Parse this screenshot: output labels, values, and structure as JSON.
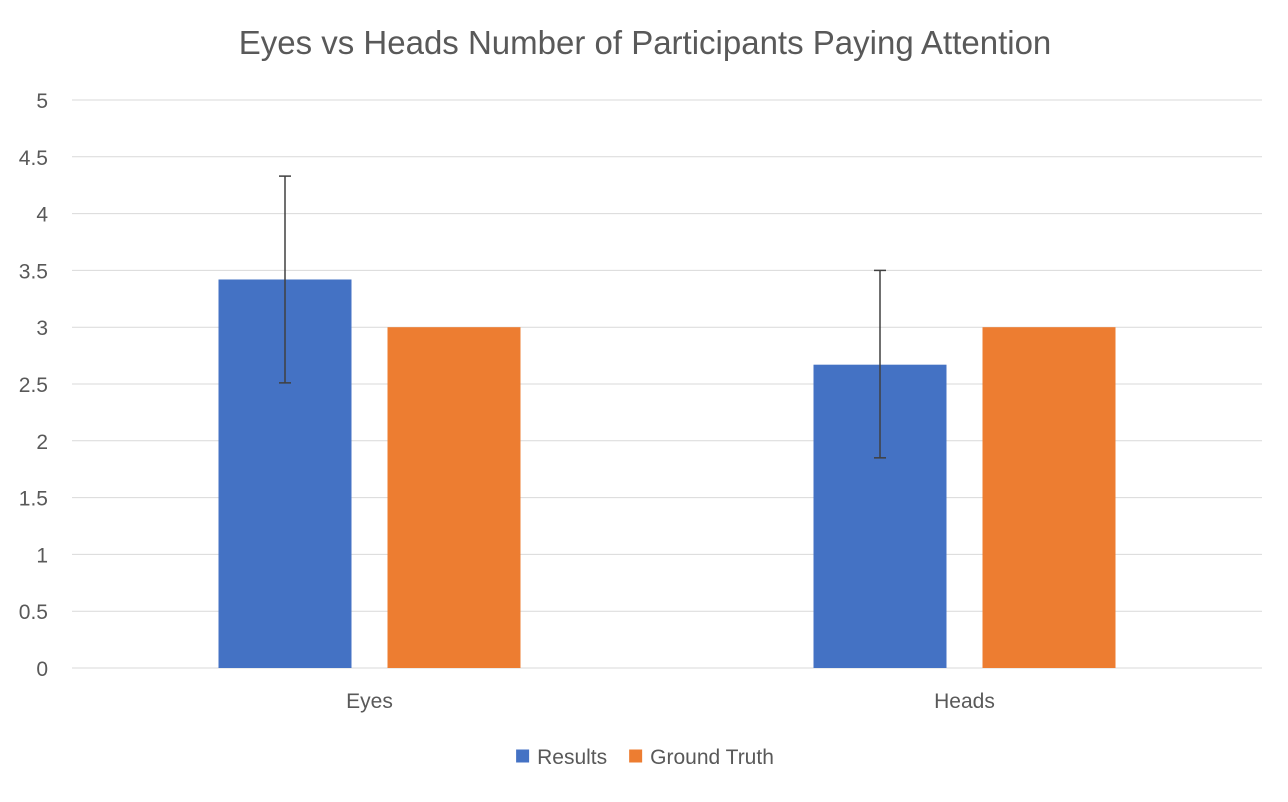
{
  "chart_data": {
    "type": "bar",
    "title": "Eyes vs Heads Number of Participants Paying Attention",
    "xlabel": "",
    "ylabel": "",
    "categories": [
      "Eyes",
      "Heads"
    ],
    "ylim": [
      0,
      5
    ],
    "yticks": [
      0,
      0.5,
      1,
      1.5,
      2,
      2.5,
      3,
      3.5,
      4,
      4.5,
      5
    ],
    "ytick_labels": [
      "0",
      "0.5",
      "1",
      "1.5",
      "2",
      "2.5",
      "3",
      "3.5",
      "4",
      "4.5",
      "5"
    ],
    "grid": true,
    "legend_position": "bottom",
    "series": [
      {
        "name": "Results",
        "color": "#4472C4",
        "values": [
          3.42,
          2.67
        ],
        "error_bars": [
          [
            2.51,
            4.33
          ],
          [
            1.85,
            3.5
          ]
        ]
      },
      {
        "name": "Ground Truth",
        "color": "#ED7D31",
        "values": [
          3,
          3
        ]
      }
    ],
    "colors": {
      "title": "#595959",
      "tick_label": "#595959",
      "gridline": "#D9D9D9",
      "axis_line": "#D9D9D9",
      "error_bar": "#404040",
      "background": "#FFFFFF"
    }
  }
}
